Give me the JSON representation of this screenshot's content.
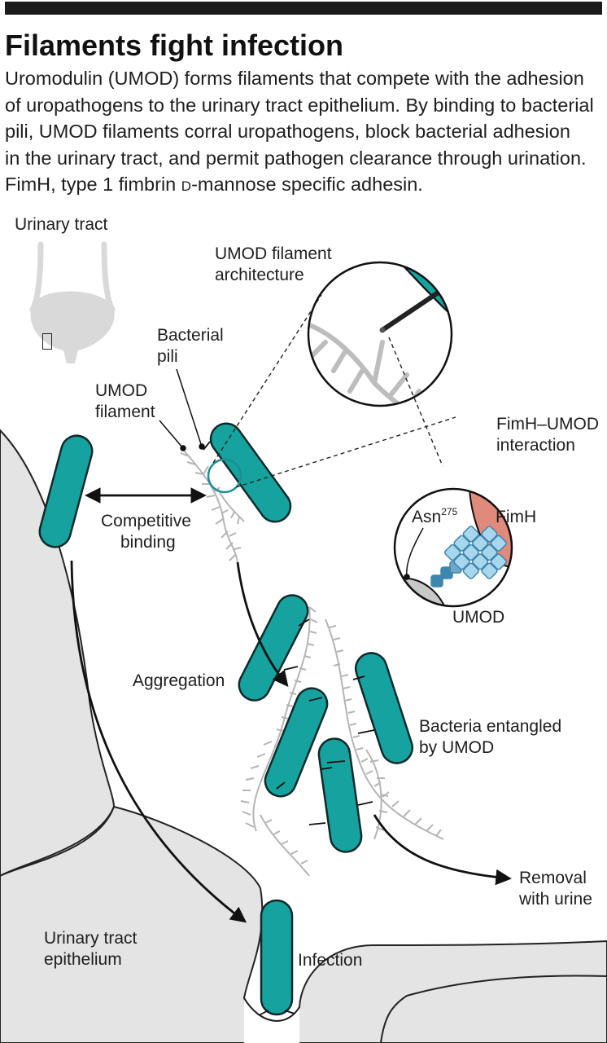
{
  "figure": {
    "title": "Filaments fight infection",
    "intro_lines": [
      "Uromodulin (UMOD) forms filaments that compete with the adhesion",
      "of uropathogens to the urinary tract epithelium. By binding to bacterial",
      "pili, UMOD filaments corral uropathogens, block bacterial adhesion",
      "in the urinary tract, and permit pathogen clearance through urination."
    ],
    "intro_last": {
      "pre": "FimH, type 1 fimbrin ",
      "d": "D",
      "post": "-mannose specific adhesin."
    }
  },
  "labels": {
    "urinary_tract": "Urinary tract",
    "umod_arch_1": "UMOD filament",
    "umod_arch_2": "architecture",
    "bacterial_1": "Bacterial",
    "bacterial_2": "pili",
    "umod_fil_1": "UMOD",
    "umod_fil_2": "filament",
    "fimh_umod_1": "FimH–UMOD",
    "fimh_umod_2": "interaction",
    "competitive_1": "Competitive",
    "competitive_2": "binding",
    "asn": "Asn",
    "asn_sup": "275",
    "fimh": "FimH",
    "umod": "UMOD",
    "aggregation": "Aggregation",
    "entangled_1": "Bacteria entangled",
    "entangled_2": "by UMOD",
    "removal_1": "Removal",
    "removal_2": "with urine",
    "epithelium_1": "Urinary tract",
    "epithelium_2": "epithelium",
    "infection": "Infection"
  },
  "colors": {
    "bacteria": "#16a3a0",
    "bacteria_outline": "#0e2a2b",
    "fimh": "#e08a7c",
    "umod_domain": "#a8d6ec",
    "umod_stalk": "#3d86ad",
    "tissue": "#e4e4e4",
    "filament": "#b5b5b5"
  },
  "icons": [
    "bladder-icon",
    "missing-glyph-icon"
  ]
}
